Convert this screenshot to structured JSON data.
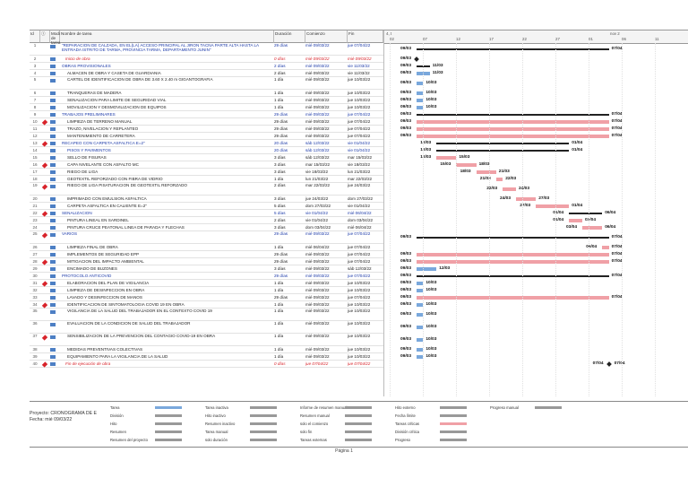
{
  "headers": {
    "id": "Id",
    "mode": "Modo de tarea",
    "name": "Nombre de tarea",
    "duration": "Duración",
    "start": "Comienzo",
    "end": "Fin"
  },
  "timeline": {
    "top_left": "4, t",
    "top_right": "nov 2",
    "ticks": [
      "02",
      "07",
      "12",
      "17",
      "22",
      "27",
      "01",
      "06",
      "11"
    ]
  },
  "tasks": [
    {
      "id": "1",
      "name": "\"REPARACION DE CALZADA, EN EL(LA) ACCESO PRINCIPAL AL JIRON TACNA PARTE ALTA HASTA LA ENTRADA ISTRITO DE TARMA, PROVINCIA TARMA, DEPARTAMENTO JUNIN\"",
      "dur": "29 días",
      "start": "mié 09/03/22",
      "end": "jue 07/04/22",
      "type": "summary",
      "tall": true
    },
    {
      "id": "2",
      "name": "Inicio de obra",
      "dur": "0 días",
      "start": "mié 09/03/22",
      "end": "mié 09/03/22",
      "type": "milestone"
    },
    {
      "id": "3",
      "name": "OBRAS PROVISIONALES",
      "dur": "2 días",
      "start": "mié 09/03/22",
      "end": "vie 11/03/22",
      "type": "summary"
    },
    {
      "id": "4",
      "name": "ALMACEN DE OBRA Y CASETA DE GUARDIANIA",
      "dur": "2 días",
      "start": "mié 09/03/22",
      "end": "vie 11/03/22",
      "type": "task"
    },
    {
      "id": "5",
      "name": "CARTEL DE IDENTIFICACION DE OBRA DE 3.60 X 2.40 m GIGANTOGRAFIA",
      "dur": "1 día",
      "start": "mié 09/03/22",
      "end": "jue 10/03/22",
      "type": "task",
      "tall": true
    },
    {
      "id": "6",
      "name": "TRANQUERAS DE MADERA",
      "dur": "1 día",
      "start": "mié 09/03/22",
      "end": "jue 10/03/22",
      "type": "task"
    },
    {
      "id": "7",
      "name": "SENALIZACION PARA LIMITE DE SEGURIDAD VIAL",
      "dur": "1 día",
      "start": "mié 09/03/22",
      "end": "jue 10/03/22",
      "type": "task"
    },
    {
      "id": "8",
      "name": "MOVILIZACION Y DESMOVILIZACION DE EQUIPOS",
      "dur": "1 día",
      "start": "mié 09/03/22",
      "end": "jue 10/03/22",
      "type": "task"
    },
    {
      "id": "9",
      "name": "TRABAJOS PRELIMINARES",
      "dur": "29 días",
      "start": "mié 09/03/22",
      "end": "jue 07/04/22",
      "type": "summary"
    },
    {
      "id": "10",
      "name": "LIMPIEZA DE TERRENO MANUAL",
      "dur": "29 días",
      "start": "mié 09/03/22",
      "end": "jue 07/04/22",
      "type": "task"
    },
    {
      "id": "11",
      "name": "TRAZO, NIVELACION Y REPLANTEO",
      "dur": "29 días",
      "start": "mié 09/03/22",
      "end": "jue 07/04/22",
      "type": "task"
    },
    {
      "id": "12",
      "name": "MANTENIMIENTO DE CARRETERA",
      "dur": "29 días",
      "start": "mié 09/03/22",
      "end": "jue 07/04/22",
      "type": "task"
    },
    {
      "id": "13",
      "name": "RECAPEO CON CARPETA ASFALTICA E=2\"",
      "dur": "20 días",
      "start": "sáb 12/03/22",
      "end": "vie 01/04/22",
      "type": "summary"
    },
    {
      "id": "14",
      "name": "PISOS Y PAVIMENTOS",
      "dur": "20 días",
      "start": "sáb 12/03/22",
      "end": "vie 01/04/22",
      "type": "summary2"
    },
    {
      "id": "15",
      "name": "SELLO DE FISURAS",
      "dur": "3 días",
      "start": "sáb 12/03/22",
      "end": "mar 15/03/22",
      "type": "task"
    },
    {
      "id": "16",
      "name": "CAPA NIVELANTE CON ASFALTO MC",
      "dur": "3 días",
      "start": "mar 15/03/22",
      "end": "vie 18/03/22",
      "type": "task"
    },
    {
      "id": "17",
      "name": "RIEGO DE LIGA",
      "dur": "3 días",
      "start": "vie 18/03/22",
      "end": "lun 21/03/22",
      "type": "task"
    },
    {
      "id": "18",
      "name": "GEOTEXTIL REFORZADO CON FIBRA DE VIDRIO",
      "dur": "1 día",
      "start": "lun 21/03/22",
      "end": "mar 22/03/22",
      "type": "task"
    },
    {
      "id": "19",
      "name": "RIEGO DE LIGA PISATURACION DE GEOTEXTIL REFORZADO",
      "dur": "2 días",
      "start": "mar 22/03/22",
      "end": "jue 24/03/22",
      "type": "task",
      "tall": true
    },
    {
      "id": "20",
      "name": "IMPRIMADO CON EMULSION ASFALTICA",
      "dur": "3 días",
      "start": "jue 24/03/22",
      "end": "dom 27/03/22",
      "type": "task"
    },
    {
      "id": "21",
      "name": "CARPETA ASFALTICA EN CALIENTE E=2\"",
      "dur": "5 días",
      "start": "dom 27/03/22",
      "end": "vie 01/04/22",
      "type": "task"
    },
    {
      "id": "22",
      "name": "SENALIZACION",
      "dur": "5 días",
      "start": "vie 01/04/22",
      "end": "mié 06/04/22",
      "type": "summary"
    },
    {
      "id": "23",
      "name": "PINTURA LINEAL EN SARDINEL",
      "dur": "2 días",
      "start": "vie 01/04/22",
      "end": "dom 03/04/22",
      "type": "task"
    },
    {
      "id": "24",
      "name": "PINTURA CRUCE PEATONAL LINEA DE PARADA Y FLECHAS",
      "dur": "3 días",
      "start": "dom 03/04/22",
      "end": "mié 06/04/22",
      "type": "task"
    },
    {
      "id": "25",
      "name": "VARIOS",
      "dur": "29 días",
      "start": "mié 09/03/22",
      "end": "jue 07/04/22",
      "type": "summary",
      "tall": true
    },
    {
      "id": "26",
      "name": "LIMPIEZA FINAL DE OBRA",
      "dur": "1 día",
      "start": "mié 06/04/22",
      "end": "jue 07/04/22",
      "type": "task"
    },
    {
      "id": "27",
      "name": "IMPLEMENTOS DE SEGURIDAD EPP",
      "dur": "29 días",
      "start": "mié 09/03/22",
      "end": "jue 07/04/22",
      "type": "task"
    },
    {
      "id": "28",
      "name": "MITIGACION DEL IMPACTO AMBIENTAL",
      "dur": "29 días",
      "start": "mié 09/03/22",
      "end": "jue 07/04/22",
      "type": "task"
    },
    {
      "id": "29",
      "name": "ENCIMADO DE BUZONES",
      "dur": "3 días",
      "start": "mié 09/03/22",
      "end": "sáb 12/03/22",
      "type": "task"
    },
    {
      "id": "30",
      "name": "PROTOCOLO ANTICOVID",
      "dur": "29 días",
      "start": "mié 09/03/22",
      "end": "jue 07/04/22",
      "type": "summary"
    },
    {
      "id": "31",
      "name": "ELABORACION DEL PLAN DE VIGILANCIA",
      "dur": "1 día",
      "start": "mié 09/03/22",
      "end": "jue 10/03/22",
      "type": "task"
    },
    {
      "id": "32",
      "name": "LIMPIEZA DE DESINFECCION EN OBRA",
      "dur": "1 día",
      "start": "mié 09/03/22",
      "end": "jue 10/03/22",
      "type": "task"
    },
    {
      "id": "33",
      "name": "LAVADO Y DESINFECCION DE MANOS",
      "dur": "29 días",
      "start": "mié 09/03/22",
      "end": "jue 07/04/22",
      "type": "task"
    },
    {
      "id": "34",
      "name": "IDENTIFICACION DE SINTOMATOLOGIA COVID 19 EN OBRA",
      "dur": "1 día",
      "start": "mié 09/03/22",
      "end": "jue 10/03/22",
      "type": "task"
    },
    {
      "id": "35",
      "name": "VIGILANCIA DE LA SALUD DEL TRABAJADOR EN EL CONTEXTO COVID 19",
      "dur": "1 día",
      "start": "mié 09/03/22",
      "end": "jue 10/03/22",
      "type": "task",
      "tall": true
    },
    {
      "id": "36",
      "name": "EVALUACION DE LA CONDICION DE SALUD DEL TRABAJADOR",
      "dur": "1 día",
      "start": "mié 09/03/22",
      "end": "jue 10/03/22",
      "type": "task",
      "tall": true
    },
    {
      "id": "37",
      "name": "SENSIBILIZACION DE LA PREVENCION DEL CONTAGIO COVID-19 EN OBRA",
      "dur": "1 día",
      "start": "mié 09/03/22",
      "end": "jue 10/03/22",
      "type": "task",
      "tall": true
    },
    {
      "id": "38",
      "name": "MEDIDAS PREVENTIVAS COLECTIVAS",
      "dur": "1 día",
      "start": "mié 09/03/22",
      "end": "jue 10/03/22",
      "type": "task"
    },
    {
      "id": "39",
      "name": "EQUIPAMIENTO PARA LA VIGILANCIA DE LA SALUD",
      "dur": "1 día",
      "start": "mié 09/03/22",
      "end": "jue 10/03/22",
      "type": "task"
    },
    {
      "id": "40",
      "name": "Fin de ejecución de obra",
      "dur": "0 días",
      "start": "jue 07/04/22",
      "end": "jue 07/04/22",
      "type": "milestone"
    }
  ],
  "bars": [
    {
      "row": 1,
      "kind": "sum",
      "from": "09/03",
      "to": "07/04"
    },
    {
      "row": 2,
      "kind": "ms",
      "from": "09/03",
      "to": "09/03"
    },
    {
      "row": 3,
      "kind": "sum",
      "from": "09/03",
      "to": "11/03"
    },
    {
      "row": 4,
      "kind": "norm",
      "from": "09/03",
      "to": "11/03"
    },
    {
      "row": 5,
      "kind": "norm",
      "from": "09/03",
      "to": "10/03"
    },
    {
      "row": 6,
      "kind": "norm",
      "from": "09/03",
      "to": "10/03"
    },
    {
      "row": 7,
      "kind": "norm",
      "from": "09/03",
      "to": "10/03"
    },
    {
      "row": 8,
      "kind": "norm",
      "from": "09/03",
      "to": "10/03"
    },
    {
      "row": 9,
      "kind": "sum",
      "from": "09/03",
      "to": "07/04"
    },
    {
      "row": 10,
      "kind": "crit",
      "from": "09/03",
      "to": "07/04"
    },
    {
      "row": 11,
      "kind": "crit",
      "from": "09/03",
      "to": "07/04"
    },
    {
      "row": 12,
      "kind": "crit",
      "from": "09/03",
      "to": "07/04"
    },
    {
      "row": 13,
      "kind": "sum",
      "from": "12/03",
      "to": "01/04"
    },
    {
      "row": 14,
      "kind": "sum",
      "from": "12/03",
      "to": "01/04"
    },
    {
      "row": 15,
      "kind": "crit",
      "from": "12/03",
      "to": "15/03"
    },
    {
      "row": 16,
      "kind": "crit",
      "from": "15/03",
      "to": "18/03"
    },
    {
      "row": 17,
      "kind": "crit",
      "from": "18/03",
      "to": "21/03"
    },
    {
      "row": 18,
      "kind": "crit",
      "from": "21/03",
      "to": "22/03"
    },
    {
      "row": 19,
      "kind": "crit",
      "from": "22/03",
      "to": "24/03"
    },
    {
      "row": 20,
      "kind": "crit",
      "from": "24/03",
      "to": "27/03"
    },
    {
      "row": 21,
      "kind": "crit",
      "from": "27/03",
      "to": "01/04"
    },
    {
      "row": 22,
      "kind": "sum",
      "from": "01/04",
      "to": "06/04"
    },
    {
      "row": 23,
      "kind": "crit",
      "from": "01/04",
      "to": "03/04"
    },
    {
      "row": 24,
      "kind": "crit",
      "from": "03/04",
      "to": "06/04"
    },
    {
      "row": 25,
      "kind": "sum",
      "from": "09/03",
      "to": "07/04"
    },
    {
      "row": 26,
      "kind": "crit",
      "from": "06/04",
      "to": "07/04"
    },
    {
      "row": 27,
      "kind": "crit",
      "from": "09/03",
      "to": "07/04"
    },
    {
      "row": 28,
      "kind": "crit",
      "from": "09/03",
      "to": "07/04"
    },
    {
      "row": 29,
      "kind": "norm",
      "from": "09/03",
      "to": "12/03"
    },
    {
      "row": 30,
      "kind": "sum",
      "from": "09/03",
      "to": "07/04"
    },
    {
      "row": 31,
      "kind": "norm",
      "from": "09/03",
      "to": "10/03"
    },
    {
      "row": 32,
      "kind": "norm",
      "from": "09/03",
      "to": "10/03"
    },
    {
      "row": 33,
      "kind": "crit",
      "from": "09/03",
      "to": "07/04"
    },
    {
      "row": 34,
      "kind": "norm",
      "from": "09/03",
      "to": "10/03"
    },
    {
      "row": 35,
      "kind": "norm",
      "from": "09/03",
      "to": "10/03"
    },
    {
      "row": 36,
      "kind": "norm",
      "from": "09/03",
      "to": "10/03"
    },
    {
      "row": 37,
      "kind": "norm",
      "from": "09/03",
      "to": "10/03"
    },
    {
      "row": 38,
      "kind": "norm",
      "from": "09/03",
      "to": "10/03"
    },
    {
      "row": 39,
      "kind": "norm",
      "from": "09/03",
      "to": "10/03"
    },
    {
      "row": 40,
      "kind": "ms",
      "from": "07/04",
      "to": "07/04"
    }
  ],
  "legend": {
    "project": "Proyecto: CRONOGRAMA DE E",
    "date": "Fecha: mié 09/03/22",
    "items": [
      "Tarea",
      "División",
      "Hito",
      "Resumen",
      "Resumen del proyecto",
      "Tarea inactiva",
      "Hito inactivo",
      "Resumen inactivo",
      "Tarea manual",
      "solo duración",
      "Informe de resumen manual",
      "Resumen manual",
      "solo el comienzo",
      "solo fin",
      "Tareas externas",
      "Hito externo",
      "Fecha límite",
      "Tareas críticas",
      "División crítica",
      "Progreso",
      "Progreso manual"
    ]
  },
  "footer": "Página 1",
  "colors": {
    "critical": "#f0a0a6",
    "normal": "#7aa8dc",
    "summary_text": "#1c3aa9",
    "milestone_text": "#d8232a"
  }
}
